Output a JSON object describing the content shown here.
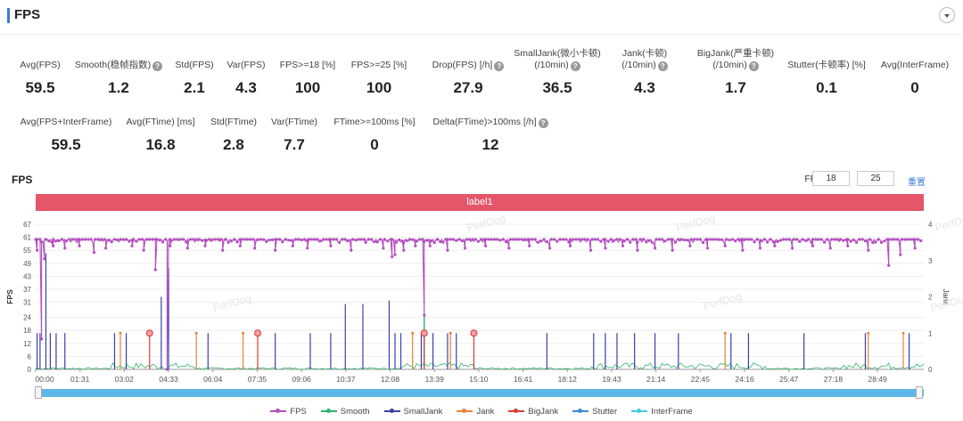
{
  "header": {
    "title": "FPS"
  },
  "metrics_row1": [
    {
      "label": "Avg(FPS)",
      "value": "59.5"
    },
    {
      "label": "Smooth(稳帧指数)",
      "help": true,
      "value": "1.2"
    },
    {
      "label": "Std(FPS)",
      "value": "2.1"
    },
    {
      "label": "Var(FPS)",
      "value": "4.3"
    },
    {
      "label": "FPS>=18 [%]",
      "value": "100"
    },
    {
      "label": "FPS>=25 [%]",
      "value": "100"
    },
    {
      "label": "Drop(FPS) [/h]",
      "help": true,
      "value": "27.9"
    },
    {
      "label": "SmallJank(微小卡顿)",
      "label2": "(/10min)",
      "help": true,
      "value": "36.5"
    },
    {
      "label": "Jank(卡顿)",
      "label2": "(/10min)",
      "help": true,
      "value": "4.3"
    },
    {
      "label": "BigJank(严重卡顿)",
      "label2": "(/10min)",
      "help": true,
      "value": "1.7"
    },
    {
      "label": "Stutter(卡顿率) [%]",
      "value": "0.1"
    },
    {
      "label": "Avg(InterFrame)",
      "value": "0"
    }
  ],
  "metrics_row2": [
    {
      "label": "Avg(FPS+InterFrame)",
      "value": "59.5"
    },
    {
      "label": "Avg(FTime) [ms]",
      "value": "16.8"
    },
    {
      "label": "Std(FTime)",
      "value": "2.8"
    },
    {
      "label": "Var(FTime)",
      "value": "7.7"
    },
    {
      "label": "FTime>=100ms [%]",
      "value": "0"
    },
    {
      "label": "Delta(FTime)>100ms [/h]",
      "help": true,
      "value": "12"
    }
  ],
  "chart_section": {
    "title": "FPS",
    "threshold_label": "FPS(>=)",
    "threshold_low": "18",
    "threshold_high": "25",
    "reset_label": "重置",
    "label_bar": "label1"
  },
  "watermark": "PerfDog",
  "colors": {
    "fps": "#b34fbf",
    "smooth": "#33b36b",
    "smalljank": "#3b3fa8",
    "jank": "#e8833a",
    "bigjank": "#d93a3a",
    "stutter": "#3a8bd5",
    "interframe": "#48c8e0",
    "label_bar": "#e5566a",
    "slider": "#5cb6e8"
  },
  "chart_data": {
    "type": "line",
    "ylabel": "FPS",
    "y2label": "Jank",
    "ylim": [
      0,
      67
    ],
    "y2lim": [
      0,
      4
    ],
    "y_ticks": [
      "0",
      "6",
      "12",
      "18",
      "24",
      "31",
      "37",
      "43",
      "49",
      "55",
      "61",
      "67"
    ],
    "y2_ticks": [
      "0",
      "1",
      "2",
      "3",
      "4"
    ],
    "x_ticks": [
      "00:00",
      "01:31",
      "03:02",
      "04:33",
      "06:04",
      "07:35",
      "09:06",
      "10:37",
      "12:08",
      "13:39",
      "15:10",
      "16:41",
      "18:12",
      "19:43",
      "21:14",
      "22:45",
      "24:16",
      "25:47",
      "27:18",
      "28:49"
    ],
    "duration_minutes": 30.4,
    "fps_baseline": 60,
    "fps_dips": [
      {
        "x": 0.05,
        "y": 55
      },
      {
        "x": 0.3,
        "y": 51
      },
      {
        "x": 0.6,
        "y": 57
      },
      {
        "x": 1.0,
        "y": 56
      },
      {
        "x": 1.5,
        "y": 57
      },
      {
        "x": 2.0,
        "y": 54
      },
      {
        "x": 2.4,
        "y": 56
      },
      {
        "x": 3.3,
        "y": 57
      },
      {
        "x": 3.7,
        "y": 55
      },
      {
        "x": 4.1,
        "y": 46
      },
      {
        "x": 4.6,
        "y": 57
      },
      {
        "x": 5.2,
        "y": 56
      },
      {
        "x": 5.8,
        "y": 57
      },
      {
        "x": 6.4,
        "y": 55
      },
      {
        "x": 7.0,
        "y": 57
      },
      {
        "x": 7.5,
        "y": 56
      },
      {
        "x": 8.2,
        "y": 55
      },
      {
        "x": 8.8,
        "y": 57
      },
      {
        "x": 9.3,
        "y": 56
      },
      {
        "x": 10.1,
        "y": 57
      },
      {
        "x": 10.8,
        "y": 55
      },
      {
        "x": 11.3,
        "y": 58
      },
      {
        "x": 11.9,
        "y": 56
      },
      {
        "x": 12.6,
        "y": 55
      },
      {
        "x": 13.0,
        "y": 57
      },
      {
        "x": 12.3,
        "y": 53
      },
      {
        "x": 13.5,
        "y": 57
      },
      {
        "x": 14.1,
        "y": 55
      },
      {
        "x": 14.7,
        "y": 56
      },
      {
        "x": 15.4,
        "y": 57
      },
      {
        "x": 16.2,
        "y": 56
      },
      {
        "x": 16.9,
        "y": 57
      },
      {
        "x": 17.6,
        "y": 56
      },
      {
        "x": 18.3,
        "y": 57
      },
      {
        "x": 19.0,
        "y": 55
      },
      {
        "x": 19.5,
        "y": 56
      },
      {
        "x": 20.1,
        "y": 57
      },
      {
        "x": 20.6,
        "y": 55
      },
      {
        "x": 21.2,
        "y": 56
      },
      {
        "x": 21.8,
        "y": 55
      },
      {
        "x": 22.4,
        "y": 57
      },
      {
        "x": 23.0,
        "y": 56
      },
      {
        "x": 23.6,
        "y": 57
      },
      {
        "x": 24.2,
        "y": 55
      },
      {
        "x": 24.8,
        "y": 56
      },
      {
        "x": 25.3,
        "y": 57
      },
      {
        "x": 25.9,
        "y": 56
      },
      {
        "x": 26.6,
        "y": 57
      },
      {
        "x": 27.2,
        "y": 56
      },
      {
        "x": 27.8,
        "y": 57
      },
      {
        "x": 28.5,
        "y": 55
      },
      {
        "x": 29.2,
        "y": 48
      },
      {
        "x": 29.6,
        "y": 53
      },
      {
        "x": 30.1,
        "y": 56
      }
    ],
    "fps_deep_dips": [
      {
        "x": 0.2,
        "y": 14
      },
      {
        "x": 4.5,
        "y": 0
      },
      {
        "x": 13.3,
        "y": 25
      },
      {
        "x": 12.2,
        "y": 52
      }
    ],
    "smalljank_spikes": [
      {
        "x": 0.05,
        "y": 1
      },
      {
        "x": 0.15,
        "y": 1
      },
      {
        "x": 0.35,
        "y": 3.2
      },
      {
        "x": 0.5,
        "y": 1
      },
      {
        "x": 0.7,
        "y": 1
      },
      {
        "x": 1.0,
        "y": 1
      },
      {
        "x": 2.7,
        "y": 1
      },
      {
        "x": 3.1,
        "y": 1
      },
      {
        "x": 4.3,
        "y": 2
      },
      {
        "x": 4.55,
        "y": 2.8
      },
      {
        "x": 5.9,
        "y": 1
      },
      {
        "x": 8.2,
        "y": 1
      },
      {
        "x": 9.4,
        "y": 1
      },
      {
        "x": 10.1,
        "y": 1
      },
      {
        "x": 10.6,
        "y": 1.8
      },
      {
        "x": 11.2,
        "y": 1.8
      },
      {
        "x": 12.1,
        "y": 1.9
      },
      {
        "x": 12.3,
        "y": 1
      },
      {
        "x": 12.5,
        "y": 1
      },
      {
        "x": 13.2,
        "y": 1
      },
      {
        "x": 13.6,
        "y": 1
      },
      {
        "x": 14.1,
        "y": 1
      },
      {
        "x": 14.4,
        "y": 1
      },
      {
        "x": 17.5,
        "y": 1
      },
      {
        "x": 19.1,
        "y": 1
      },
      {
        "x": 19.5,
        "y": 1
      },
      {
        "x": 19.9,
        "y": 1
      },
      {
        "x": 20.5,
        "y": 1
      },
      {
        "x": 21.2,
        "y": 1
      },
      {
        "x": 22.0,
        "y": 1
      },
      {
        "x": 23.8,
        "y": 1
      },
      {
        "x": 24.4,
        "y": 1
      },
      {
        "x": 26.3,
        "y": 1
      },
      {
        "x": 28.4,
        "y": 1
      },
      {
        "x": 29.9,
        "y": 1
      }
    ],
    "jank_spikes": [
      {
        "x": 2.9,
        "y": 1
      },
      {
        "x": 5.5,
        "y": 1
      },
      {
        "x": 7.1,
        "y": 1
      },
      {
        "x": 12.9,
        "y": 1
      },
      {
        "x": 14.2,
        "y": 1
      },
      {
        "x": 23.6,
        "y": 1
      },
      {
        "x": 28.5,
        "y": 1
      },
      {
        "x": 29.7,
        "y": 1
      }
    ],
    "bigjank_points": [
      {
        "x": 3.9,
        "y": 1
      },
      {
        "x": 7.6,
        "y": 1
      },
      {
        "x": 13.3,
        "y": 1
      },
      {
        "x": 15.0,
        "y": 1
      }
    ],
    "legend": [
      "FPS",
      "Smooth",
      "SmallJank",
      "Jank",
      "BigJank",
      "Stutter",
      "InterFrame"
    ]
  }
}
